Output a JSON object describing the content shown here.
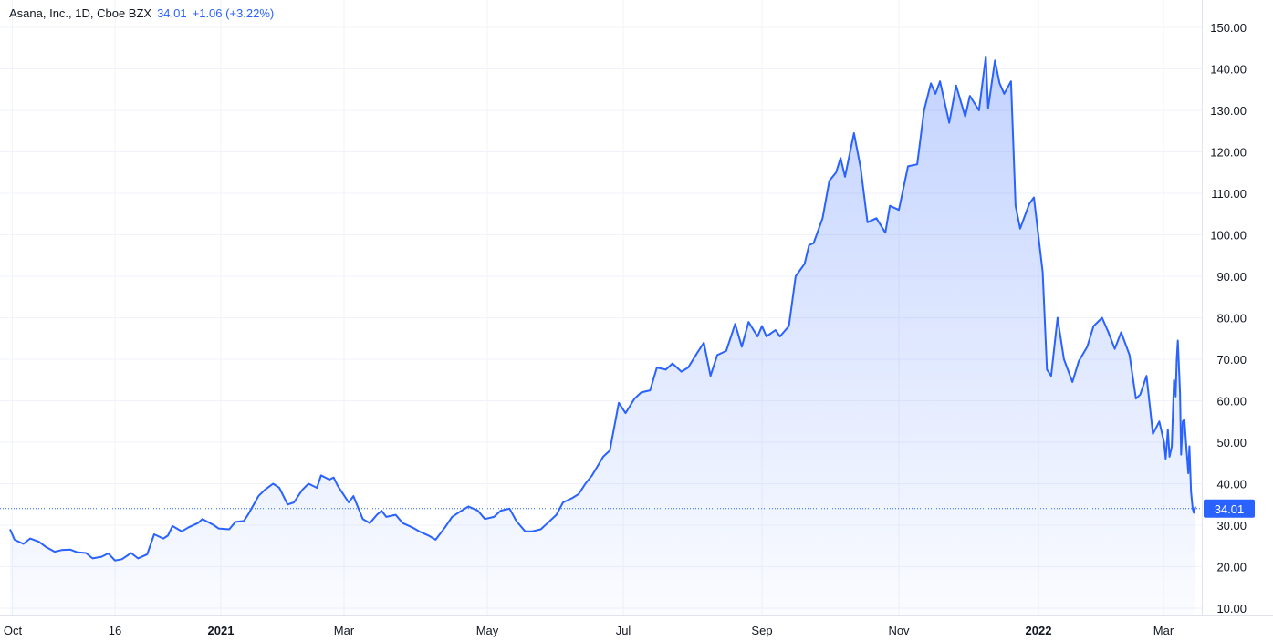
{
  "legend": {
    "symbol": "Asana, Inc., 1D, Cboe BZX",
    "price": "34.01",
    "change": "+1.06 (+3.22%)"
  },
  "colors": {
    "line": "#2962ff",
    "fill_top": "#2962ff",
    "grid": "#f0f3fa",
    "axis_text": "#131722",
    "price_tag": "#2962ff"
  },
  "chart_data": {
    "type": "area",
    "title": "",
    "xlabel": "",
    "ylabel": "",
    "ylim": [
      10,
      150
    ],
    "grid": true,
    "last_value": "34.01",
    "y_ticks": [
      "150.00",
      "140.00",
      "130.00",
      "120.00",
      "110.00",
      "100.00",
      "90.00",
      "80.00",
      "70.00",
      "60.00",
      "50.00",
      "40.00",
      "30.00",
      "20.00",
      "10.00"
    ],
    "x_ticks": [
      {
        "label": "Oct",
        "date": "2020-10-01",
        "bold": false
      },
      {
        "label": "16",
        "date": "2020-11-16",
        "bold": false
      },
      {
        "label": "2021",
        "date": "2021-01-01",
        "bold": true
      },
      {
        "label": "Mar",
        "date": "2021-03-01",
        "bold": false
      },
      {
        "label": "May",
        "date": "2021-05-01",
        "bold": false
      },
      {
        "label": "Jul",
        "date": "2021-07-01",
        "bold": false
      },
      {
        "label": "Sep",
        "date": "2021-09-01",
        "bold": false
      },
      {
        "label": "Nov",
        "date": "2021-11-01",
        "bold": false
      },
      {
        "label": "2022",
        "date": "2022-01-01",
        "bold": true
      },
      {
        "label": "Mar",
        "date": "2022-03-01",
        "bold": false
      }
    ],
    "series": [
      {
        "points": [
          [
            "2020-09-30",
            29.0
          ],
          [
            "2020-10-02",
            26.5
          ],
          [
            "2020-10-06",
            25.5
          ],
          [
            "2020-10-09",
            26.8
          ],
          [
            "2020-10-13",
            26.0
          ],
          [
            "2020-10-16",
            24.8
          ],
          [
            "2020-10-20",
            23.6
          ],
          [
            "2020-10-23",
            24.0
          ],
          [
            "2020-10-27",
            24.1
          ],
          [
            "2020-10-30",
            23.5
          ],
          [
            "2020-11-03",
            23.3
          ],
          [
            "2020-11-06",
            22.0
          ],
          [
            "2020-11-10",
            22.4
          ],
          [
            "2020-11-13",
            23.2
          ],
          [
            "2020-11-16",
            21.5
          ],
          [
            "2020-11-19",
            21.8
          ],
          [
            "2020-11-23",
            23.3
          ],
          [
            "2020-11-26",
            22.0
          ],
          [
            "2020-11-30",
            23.0
          ],
          [
            "2020-12-03",
            27.8
          ],
          [
            "2020-12-07",
            26.8
          ],
          [
            "2020-12-09",
            27.5
          ],
          [
            "2020-12-11",
            29.8
          ],
          [
            "2020-12-15",
            28.5
          ],
          [
            "2020-12-18",
            29.5
          ],
          [
            "2020-12-22",
            30.5
          ],
          [
            "2020-12-24",
            31.5
          ],
          [
            "2020-12-29",
            30.0
          ],
          [
            "2020-12-31",
            29.2
          ],
          [
            "2021-01-05",
            29.0
          ],
          [
            "2021-01-08",
            30.8
          ],
          [
            "2021-01-12",
            31.0
          ],
          [
            "2021-01-14",
            32.5
          ],
          [
            "2021-01-19",
            37.0
          ],
          [
            "2021-01-22",
            38.5
          ],
          [
            "2021-01-26",
            40.0
          ],
          [
            "2021-01-29",
            39.0
          ],
          [
            "2021-02-02",
            35.0
          ],
          [
            "2021-02-05",
            35.5
          ],
          [
            "2021-02-09",
            38.5
          ],
          [
            "2021-02-12",
            40.0
          ],
          [
            "2021-02-16",
            39.0
          ],
          [
            "2021-02-18",
            42.0
          ],
          [
            "2021-02-22",
            41.0
          ],
          [
            "2021-02-24",
            41.5
          ],
          [
            "2021-02-26",
            39.5
          ],
          [
            "2021-03-03",
            35.5
          ],
          [
            "2021-03-05",
            37.0
          ],
          [
            "2021-03-09",
            31.5
          ],
          [
            "2021-03-12",
            30.5
          ],
          [
            "2021-03-15",
            32.5
          ],
          [
            "2021-03-17",
            33.5
          ],
          [
            "2021-03-19",
            32.0
          ],
          [
            "2021-03-23",
            32.5
          ],
          [
            "2021-03-26",
            30.5
          ],
          [
            "2021-03-30",
            29.5
          ],
          [
            "2021-04-02",
            28.5
          ],
          [
            "2021-04-06",
            27.5
          ],
          [
            "2021-04-09",
            26.5
          ],
          [
            "2021-04-13",
            29.5
          ],
          [
            "2021-04-16",
            32.0
          ],
          [
            "2021-04-20",
            33.5
          ],
          [
            "2021-04-23",
            34.5
          ],
          [
            "2021-04-27",
            33.5
          ],
          [
            "2021-04-30",
            31.5
          ],
          [
            "2021-05-04",
            32.0
          ],
          [
            "2021-05-07",
            33.5
          ],
          [
            "2021-05-11",
            34.0
          ],
          [
            "2021-05-14",
            31.0
          ],
          [
            "2021-05-18",
            28.5
          ],
          [
            "2021-05-21",
            28.5
          ],
          [
            "2021-05-25",
            29.0
          ],
          [
            "2021-05-28",
            30.5
          ],
          [
            "2021-06-01",
            32.5
          ],
          [
            "2021-06-04",
            35.5
          ],
          [
            "2021-06-08",
            36.5
          ],
          [
            "2021-06-11",
            37.5
          ],
          [
            "2021-06-14",
            40.0
          ],
          [
            "2021-06-17",
            42.0
          ],
          [
            "2021-06-22",
            46.5
          ],
          [
            "2021-06-25",
            48.0
          ],
          [
            "2021-06-29",
            59.5
          ],
          [
            "2021-07-02",
            57.0
          ],
          [
            "2021-07-06",
            60.5
          ],
          [
            "2021-07-09",
            62.0
          ],
          [
            "2021-07-13",
            62.5
          ],
          [
            "2021-07-16",
            68.0
          ],
          [
            "2021-07-20",
            67.5
          ],
          [
            "2021-07-23",
            69.0
          ],
          [
            "2021-07-27",
            67.0
          ],
          [
            "2021-07-30",
            68.0
          ],
          [
            "2021-08-03",
            71.5
          ],
          [
            "2021-08-06",
            74.0
          ],
          [
            "2021-08-09",
            66.0
          ],
          [
            "2021-08-12",
            71.0
          ],
          [
            "2021-08-16",
            72.0
          ],
          [
            "2021-08-20",
            78.5
          ],
          [
            "2021-08-23",
            73.0
          ],
          [
            "2021-08-26",
            79.0
          ],
          [
            "2021-08-30",
            75.5
          ],
          [
            "2021-09-01",
            78.0
          ],
          [
            "2021-09-03",
            75.5
          ],
          [
            "2021-09-07",
            77.0
          ],
          [
            "2021-09-09",
            75.5
          ],
          [
            "2021-09-13",
            78.0
          ],
          [
            "2021-09-16",
            90.0
          ],
          [
            "2021-09-20",
            93.0
          ],
          [
            "2021-09-22",
            97.5
          ],
          [
            "2021-09-24",
            98.0
          ],
          [
            "2021-09-28",
            104.0
          ],
          [
            "2021-10-01",
            113.0
          ],
          [
            "2021-10-04",
            115.0
          ],
          [
            "2021-10-06",
            118.5
          ],
          [
            "2021-10-08",
            114.0
          ],
          [
            "2021-10-12",
            124.5
          ],
          [
            "2021-10-15",
            116.0
          ],
          [
            "2021-10-18",
            103.0
          ],
          [
            "2021-10-22",
            104.0
          ],
          [
            "2021-10-26",
            100.5
          ],
          [
            "2021-10-28",
            107.0
          ],
          [
            "2021-11-01",
            106.0
          ],
          [
            "2021-11-05",
            116.5
          ],
          [
            "2021-11-09",
            117.0
          ],
          [
            "2021-11-12",
            130.0
          ],
          [
            "2021-11-15",
            136.5
          ],
          [
            "2021-11-17",
            134.0
          ],
          [
            "2021-11-19",
            137.0
          ],
          [
            "2021-11-23",
            127.0
          ],
          [
            "2021-11-26",
            136.0
          ],
          [
            "2021-11-30",
            128.5
          ],
          [
            "2021-12-02",
            133.5
          ],
          [
            "2021-12-06",
            130.0
          ],
          [
            "2021-12-09",
            143.0
          ],
          [
            "2021-12-10",
            130.5
          ],
          [
            "2021-12-13",
            142.0
          ],
          [
            "2021-12-15",
            136.5
          ],
          [
            "2021-12-17",
            134.0
          ],
          [
            "2021-12-20",
            137.0
          ],
          [
            "2021-12-22",
            107.0
          ],
          [
            "2021-12-24",
            101.5
          ],
          [
            "2021-12-28",
            107.5
          ],
          [
            "2021-12-30",
            109.0
          ],
          [
            "2022-01-03",
            91.0
          ],
          [
            "2022-01-05",
            67.5
          ],
          [
            "2022-01-07",
            66.0
          ],
          [
            "2022-01-10",
            80.0
          ],
          [
            "2022-01-13",
            70.0
          ],
          [
            "2022-01-17",
            64.5
          ],
          [
            "2022-01-20",
            69.5
          ],
          [
            "2022-01-24",
            73.0
          ],
          [
            "2022-01-27",
            78.0
          ],
          [
            "2022-01-31",
            80.0
          ],
          [
            "2022-02-03",
            76.5
          ],
          [
            "2022-02-06",
            72.5
          ],
          [
            "2022-02-09",
            76.5
          ],
          [
            "2022-02-13",
            71.0
          ],
          [
            "2022-02-16",
            60.5
          ],
          [
            "2022-02-18",
            61.5
          ],
          [
            "2022-02-21",
            66.0
          ],
          [
            "2022-02-24",
            52.0
          ],
          [
            "2022-02-27",
            55.0
          ],
          [
            "2022-03-02",
            50.0
          ],
          [
            "2022-03-05",
            46.0
          ],
          [
            "2022-03-09",
            53.0
          ],
          [
            "2022-03-12",
            46.5
          ],
          [
            "2022-03-16",
            49.0
          ],
          [
            "2022-03-20",
            65.0
          ],
          [
            "2022-03-23",
            61.0
          ],
          [
            "2022-03-25",
            70.0
          ],
          [
            "2022-03-27",
            74.5
          ],
          [
            "2022-03-31",
            62.0
          ],
          [
            "2022-04-02",
            47.0
          ],
          [
            "2022-04-05",
            55.0
          ],
          [
            "2022-04-08",
            55.5
          ],
          [
            "2022-04-12",
            48.0
          ],
          [
            "2022-04-15",
            42.5
          ],
          [
            "2022-04-17",
            49.0
          ],
          [
            "2022-04-20",
            38.0
          ],
          [
            "2022-04-23",
            34.0
          ],
          [
            "2022-04-25",
            33.0
          ],
          [
            "2022-04-28",
            34.5
          ]
        ]
      }
    ]
  }
}
